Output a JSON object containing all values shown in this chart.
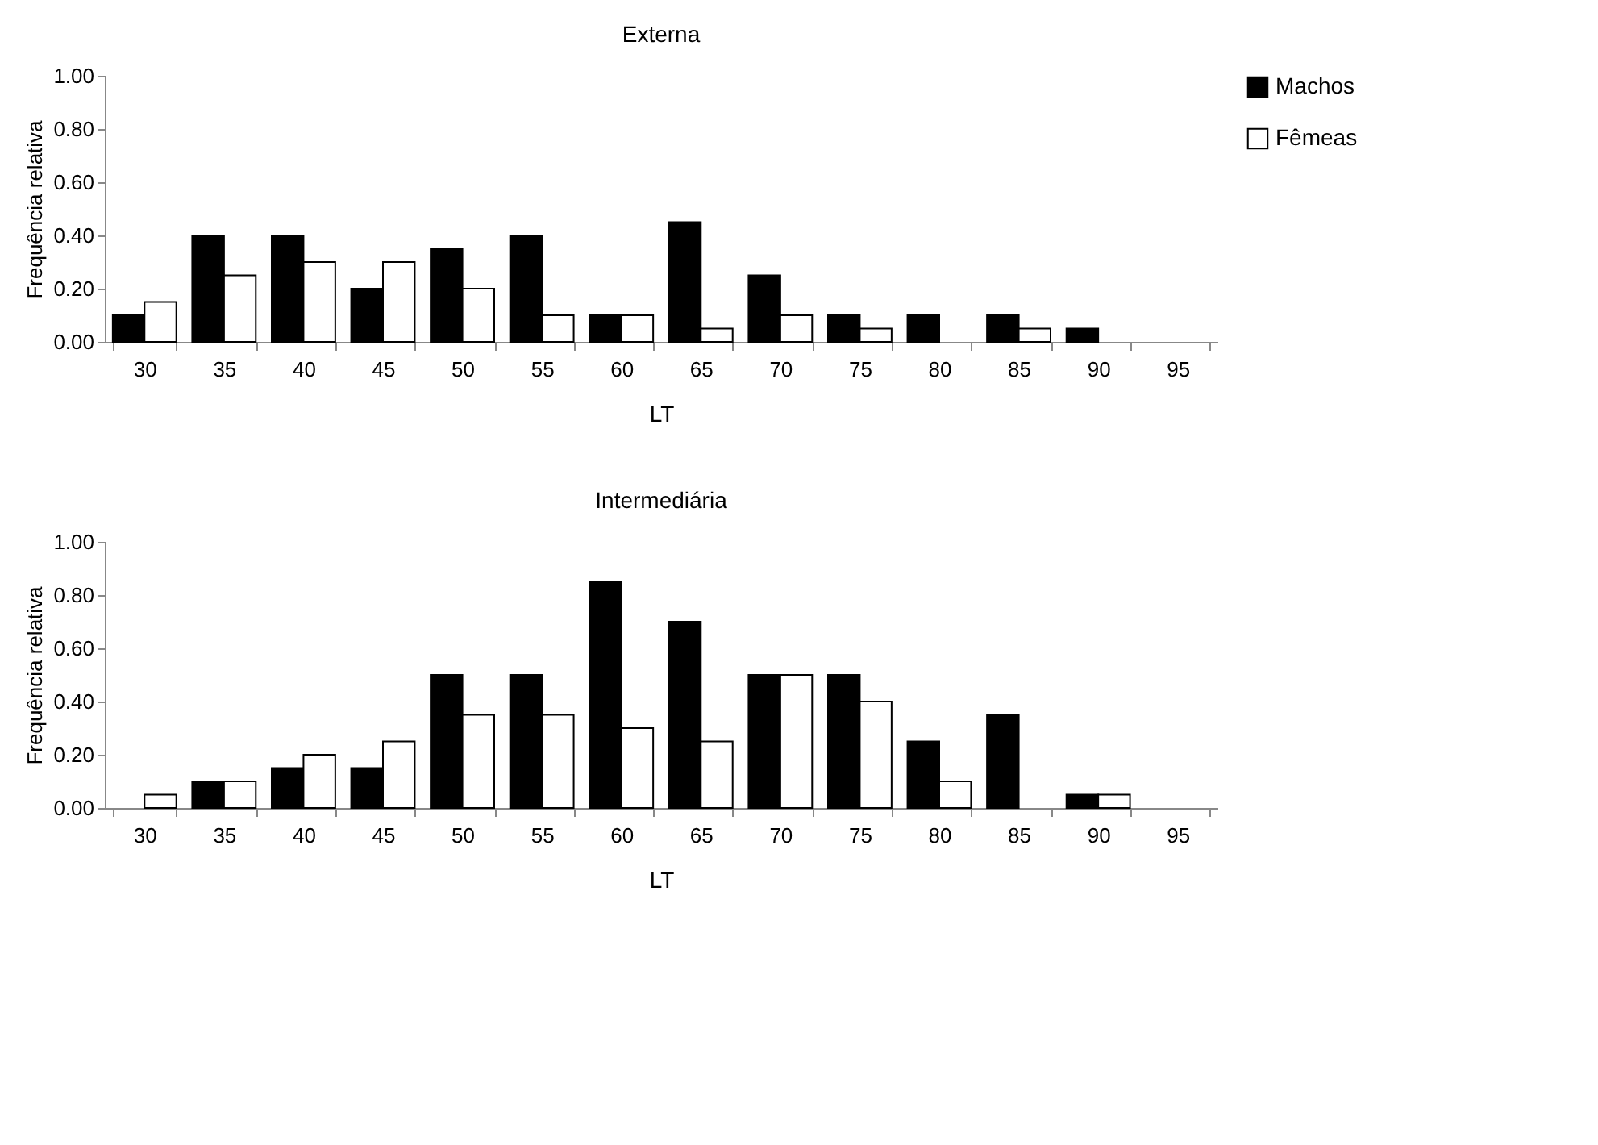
{
  "chart_data": [
    {
      "type": "bar",
      "title": "Externa",
      "xlabel": "LT",
      "ylabel": "Frequência relativa",
      "categories": [
        "30",
        "35",
        "40",
        "45",
        "50",
        "55",
        "60",
        "65",
        "70",
        "75",
        "80",
        "85",
        "90",
        "95"
      ],
      "series": [
        {
          "name": "Machos",
          "color": "#000000",
          "values": [
            0.1,
            0.4,
            0.4,
            0.2,
            0.35,
            0.4,
            0.1,
            0.45,
            0.25,
            0.1,
            0.1,
            0.1,
            0.05,
            null
          ]
        },
        {
          "name": "Fêmeas",
          "color": "#ffffff",
          "values": [
            0.15,
            0.25,
            0.3,
            0.3,
            0.2,
            0.1,
            0.1,
            0.05,
            0.1,
            0.05,
            null,
            0.05,
            null,
            null
          ]
        }
      ],
      "ylim": [
        0,
        1
      ],
      "yticks": [
        {
          "value": 0,
          "label": "0.00"
        },
        {
          "value": 0.2,
          "label": "0.20"
        },
        {
          "value": 0.4,
          "label": "0.40"
        },
        {
          "value": 0.6,
          "label": "0.60"
        },
        {
          "value": 0.8,
          "label": "0.80"
        },
        {
          "value": 1,
          "label": "1.00"
        }
      ],
      "grid": false,
      "legend": "right"
    },
    {
      "type": "bar",
      "title": "Intermediária",
      "xlabel": "LT",
      "ylabel": "Frequência relativa",
      "categories": [
        "30",
        "35",
        "40",
        "45",
        "50",
        "55",
        "60",
        "65",
        "70",
        "75",
        "80",
        "85",
        "90",
        "95"
      ],
      "series": [
        {
          "name": "Machos",
          "color": "#000000",
          "values": [
            null,
            0.1,
            0.15,
            0.15,
            0.5,
            0.5,
            0.85,
            0.7,
            0.5,
            0.5,
            0.25,
            0.35,
            0.05,
            null
          ]
        },
        {
          "name": "Fêmeas",
          "color": "#ffffff",
          "values": [
            0.05,
            0.1,
            0.2,
            0.25,
            0.35,
            0.35,
            0.3,
            0.25,
            0.5,
            0.4,
            0.1,
            null,
            0.05,
            null
          ]
        }
      ],
      "ylim": [
        0,
        1
      ],
      "yticks": [
        {
          "value": 0,
          "label": "0.00"
        },
        {
          "value": 0.2,
          "label": "0.20"
        },
        {
          "value": 0.4,
          "label": "0.40"
        },
        {
          "value": 0.6,
          "label": "0.60"
        },
        {
          "value": 0.8,
          "label": "0.80"
        },
        {
          "value": 1,
          "label": "1.00"
        }
      ],
      "grid": false,
      "legend": "right"
    }
  ]
}
